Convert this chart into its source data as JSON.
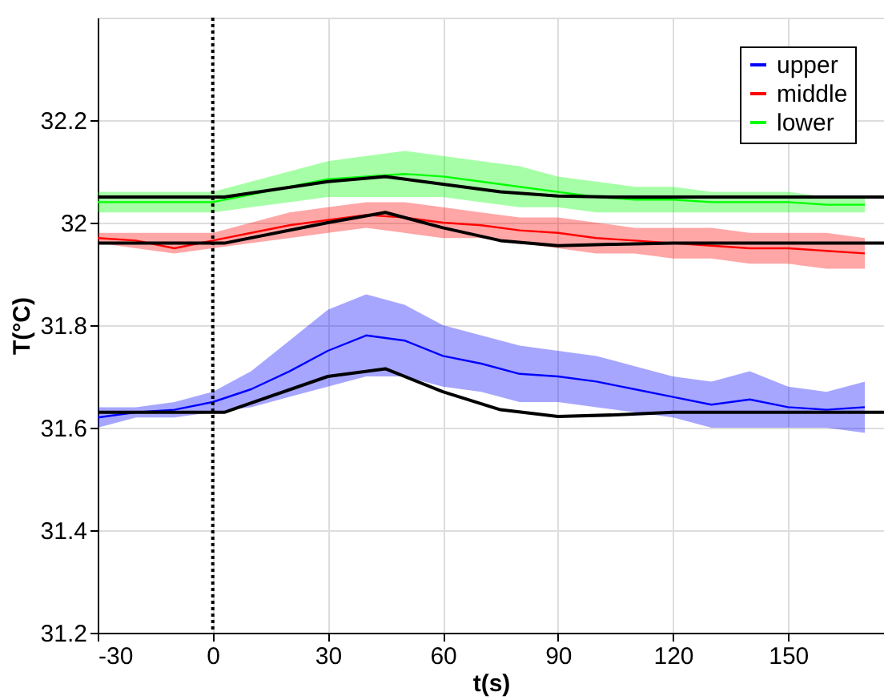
{
  "chart_data": {
    "type": "line",
    "xlabel": "t(s)",
    "ylabel": "T(°C)",
    "x": [
      -30,
      -20,
      -10,
      0,
      10,
      20,
      30,
      40,
      50,
      60,
      70,
      80,
      90,
      100,
      110,
      120,
      130,
      140,
      150,
      160,
      170
    ],
    "xlim": [
      -30,
      175
    ],
    "ylim": [
      31.2,
      32.4
    ],
    "xticks": [
      -30,
      0,
      30,
      60,
      90,
      120,
      150
    ],
    "yticks": [
      31.2,
      31.4,
      31.6,
      31.8,
      32,
      32.2
    ],
    "grid": true,
    "legend": "top right",
    "line_style": "solid",
    "marker": "none",
    "series": [
      {
        "name": "upper",
        "color": "#0000ff",
        "values": [
          31.62,
          31.63,
          31.635,
          31.65,
          31.675,
          31.71,
          31.75,
          31.78,
          31.77,
          31.74,
          31.725,
          31.705,
          31.7,
          31.69,
          31.675,
          31.66,
          31.645,
          31.655,
          31.64,
          31.635,
          31.64
        ],
        "upper": [
          31.64,
          31.64,
          31.65,
          31.67,
          31.71,
          31.77,
          31.83,
          31.86,
          31.84,
          31.8,
          31.78,
          31.76,
          31.75,
          31.74,
          31.72,
          31.7,
          31.69,
          31.71,
          31.68,
          31.67,
          31.69
        ],
        "lower": [
          31.6,
          31.62,
          31.62,
          31.63,
          31.64,
          31.66,
          31.68,
          31.7,
          31.7,
          31.68,
          31.67,
          31.65,
          31.65,
          31.64,
          31.63,
          31.62,
          31.6,
          31.6,
          31.6,
          31.6,
          31.59
        ]
      },
      {
        "name": "middle",
        "color": "#ff0000",
        "values": [
          31.97,
          31.965,
          31.95,
          31.965,
          31.98,
          31.995,
          32.005,
          32.015,
          32.01,
          32.0,
          31.995,
          31.985,
          31.98,
          31.97,
          31.965,
          31.96,
          31.955,
          31.95,
          31.95,
          31.945,
          31.94
        ],
        "upper": [
          31.98,
          31.98,
          31.98,
          31.98,
          32.0,
          32.02,
          32.03,
          32.04,
          32.04,
          32.03,
          32.02,
          32.01,
          32.01,
          32.0,
          31.99,
          31.99,
          31.99,
          31.98,
          31.98,
          31.98,
          31.97
        ],
        "lower": [
          31.96,
          31.95,
          31.94,
          31.95,
          31.96,
          31.97,
          31.98,
          31.99,
          31.98,
          31.97,
          31.97,
          31.96,
          31.95,
          31.94,
          31.94,
          31.93,
          31.93,
          31.92,
          31.92,
          31.91,
          31.91
        ]
      },
      {
        "name": "lower",
        "color": "#00ff00",
        "values": [
          32.04,
          32.04,
          32.04,
          32.04,
          32.055,
          32.07,
          32.085,
          32.09,
          32.095,
          32.09,
          32.08,
          32.07,
          32.06,
          32.05,
          32.045,
          32.045,
          32.04,
          32.04,
          32.04,
          32.035,
          32.035
        ],
        "upper": [
          32.06,
          32.06,
          32.06,
          32.06,
          32.08,
          32.1,
          32.12,
          32.13,
          32.14,
          32.13,
          32.12,
          32.11,
          32.09,
          32.08,
          32.07,
          32.07,
          32.06,
          32.06,
          32.06,
          32.05,
          32.05
        ],
        "lower": [
          32.02,
          32.02,
          32.02,
          32.02,
          32.03,
          32.04,
          32.05,
          32.05,
          32.05,
          32.05,
          32.04,
          32.03,
          32.03,
          32.02,
          32.02,
          32.02,
          32.02,
          32.02,
          32.02,
          32.02,
          32.02
        ]
      },
      {
        "type": "line",
        "color": "#000000",
        "x": [
          -30,
          3,
          30,
          45,
          60,
          75,
          90,
          105,
          120,
          175
        ],
        "values": [
          31.63,
          31.63,
          31.7,
          31.715,
          31.67,
          31.635,
          31.622,
          31.625,
          31.63,
          31.63
        ]
      },
      {
        "type": "line",
        "color": "#000000",
        "x": [
          -30,
          3,
          30,
          45,
          60,
          75,
          90,
          105,
          120,
          175
        ],
        "values": [
          31.96,
          31.96,
          32.0,
          32.02,
          31.99,
          31.965,
          31.955,
          31.958,
          31.96,
          31.96
        ]
      },
      {
        "type": "line",
        "color": "#000000",
        "x": [
          -30,
          3,
          30,
          45,
          60,
          75,
          90,
          105,
          120,
          175
        ],
        "values": [
          32.05,
          32.05,
          32.08,
          32.09,
          32.075,
          32.06,
          32.052,
          32.05,
          32.05,
          32.05
        ]
      }
    ],
    "ref_lines": [
      {
        "axis": "x",
        "value": 0,
        "color": "#000000",
        "line_style": "dotted"
      }
    ]
  }
}
